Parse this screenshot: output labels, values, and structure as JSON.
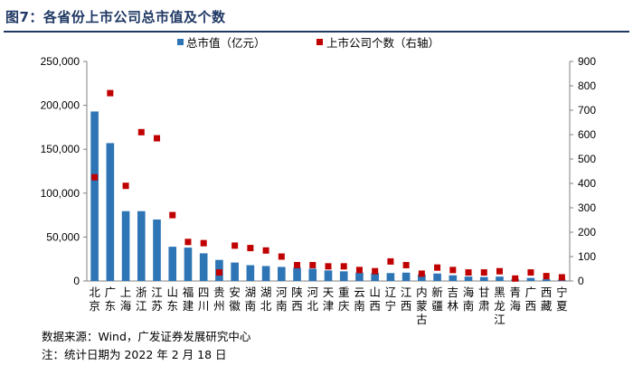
{
  "figure_title": "图7：各省份上市公司总市值及个数",
  "source_note": "数据来源：Wind，广发证券发展研究中心",
  "date_note": "注：统计日期为 2022 年 2 月 18 日",
  "colors": {
    "bar": "#2e75b6",
    "marker": "#c00000",
    "title": "#1f3864"
  },
  "chart_data": {
    "type": "bar",
    "categories": [
      "北京",
      "广东",
      "上海",
      "浙江",
      "江苏",
      "山东",
      "福建",
      "四川",
      "贵州",
      "安徽",
      "湖南",
      "湖北",
      "河南",
      "陕西",
      "河北",
      "天津",
      "重庆",
      "云南",
      "山西",
      "辽宁",
      "江西",
      "内蒙古",
      "新疆",
      "吉林",
      "海南",
      "甘肃",
      "黑龙江",
      "青海",
      "广西",
      "西藏",
      "宁夏"
    ],
    "category_labels": [
      "北京",
      "广东",
      "上海",
      "浙江",
      "江苏",
      "山东",
      "福建",
      "四川",
      "贵州",
      "安徽",
      "湖南",
      "湖北",
      "河南",
      "陕西",
      "河北",
      "天津",
      "重庆",
      "云南",
      "山西",
      "辽宁",
      "江西",
      "内蒙\n古",
      "新疆",
      "吉林",
      "海南",
      "甘肃",
      "黑龙\n江",
      "青海",
      "广西",
      "西藏",
      "宁夏"
    ],
    "series": [
      {
        "name": "总市值（亿元）",
        "type": "bar",
        "axis": "left",
        "values": [
          193000,
          157000,
          79500,
          79500,
          70000,
          39000,
          38000,
          31500,
          24000,
          21000,
          18000,
          17000,
          16000,
          15000,
          14000,
          12000,
          11000,
          9500,
          9000,
          9000,
          9500,
          7500,
          8500,
          6500,
          5000,
          4500,
          5000,
          2000,
          3500,
          2000,
          1500
        ]
      },
      {
        "name": "上市公司个数（右轴）",
        "type": "scatter",
        "axis": "right",
        "values": [
          425,
          770,
          390,
          610,
          585,
          270,
          160,
          155,
          35,
          145,
          135,
          125,
          100,
          65,
          65,
          60,
          60,
          45,
          40,
          80,
          65,
          30,
          55,
          45,
          35,
          35,
          40,
          10,
          35,
          20,
          15
        ]
      }
    ],
    "left_axis": {
      "min": 0,
      "max": 250000,
      "ticks": [
        "0",
        "50,000",
        "100,000",
        "150,000",
        "200,000",
        "250,000"
      ]
    },
    "right_axis": {
      "min": 0,
      "max": 900,
      "ticks": [
        "0",
        "100",
        "200",
        "300",
        "400",
        "500",
        "600",
        "700",
        "800",
        "900"
      ]
    },
    "legend": "top-center",
    "grid": false
  }
}
